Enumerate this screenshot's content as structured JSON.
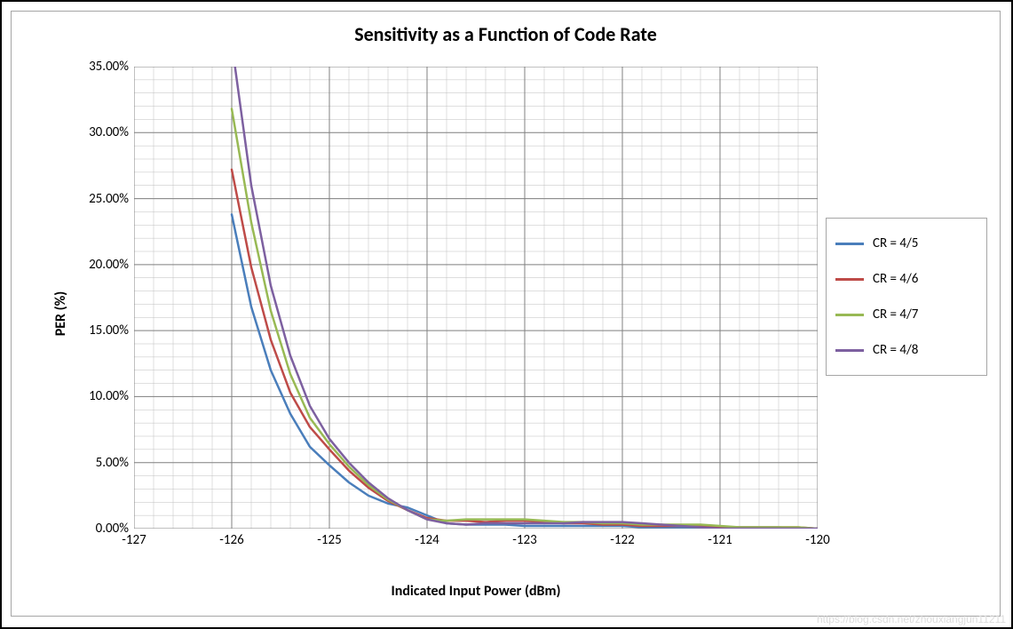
{
  "chart": {
    "type": "line",
    "title": "Sensitivity as a Function of Code Rate",
    "title_fontsize": 22,
    "title_fontweight": "bold",
    "xlabel": "Indicated Input Power (dBm)",
    "ylabel": "PER (%)",
    "label_fontsize": 16,
    "label_fontweight": "bold",
    "tick_fontsize": 15,
    "background_color": "#ffffff",
    "plot_background_color": "#ffffff",
    "outer_border_color": "#000000",
    "inner_border_color": "#a6a6a6",
    "xlim": [
      -127,
      -120
    ],
    "ylim": [
      0,
      0.35
    ],
    "x_major_ticks": [
      -127,
      -126,
      -125,
      -124,
      -123,
      -122,
      -121,
      -120
    ],
    "x_minor_step": 0.2,
    "y_major_ticks": [
      0,
      0.05,
      0.1,
      0.15,
      0.2,
      0.25,
      0.3,
      0.35
    ],
    "y_minor_step": 0.01,
    "y_tick_labels": [
      "0.00%",
      "5.00%",
      "10.00%",
      "15.00%",
      "20.00%",
      "25.00%",
      "30.00%",
      "35.00%"
    ],
    "x_tick_labels": [
      "-127",
      "-126",
      "-125",
      "-124",
      "-123",
      "-122",
      "-121",
      "-120"
    ],
    "major_grid_color": "#808080",
    "minor_grid_color": "#bfbfbf",
    "axis_line_color": "#808080",
    "major_grid_width": 1,
    "minor_grid_width": 0.5,
    "line_width": 2.5,
    "series": [
      {
        "name": "CR = 4/5",
        "color": "#4a7ebb",
        "x": [
          -126,
          -125.8,
          -125.6,
          -125.4,
          -125.2,
          -125,
          -124.8,
          -124.6,
          -124.4,
          -124.2,
          -124,
          -123.8,
          -123.6,
          -123.4,
          -123.2,
          -123,
          -122.8,
          -122.6,
          -122.4,
          -122.2,
          -122,
          -121.8,
          -121.6,
          -121.4,
          -121.2,
          -121,
          -120.8,
          -120.6,
          -120.4,
          -120.2,
          -120
        ],
        "y": [
          0.238,
          0.168,
          0.12,
          0.087,
          0.062,
          0.048,
          0.035,
          0.025,
          0.019,
          0.016,
          0.01,
          0.004,
          0.003,
          0.003,
          0.003,
          0.002,
          0.002,
          0.002,
          0.002,
          0.002,
          0.002,
          0.001,
          0.001,
          0.001,
          0.001,
          0.001,
          0.001,
          0.001,
          0.001,
          0.0,
          0.0
        ]
      },
      {
        "name": "CR = 4/6",
        "color": "#be4b48",
        "x": [
          -126,
          -125.8,
          -125.6,
          -125.4,
          -125.2,
          -125,
          -124.8,
          -124.6,
          -124.4,
          -124.2,
          -124,
          -123.8,
          -123.6,
          -123.4,
          -123.2,
          -123,
          -122.8,
          -122.6,
          -122.4,
          -122.2,
          -122,
          -121.8,
          -121.6,
          -121.4,
          -121.2,
          -121,
          -120.8,
          -120.6,
          -120.4,
          -120.2,
          -120
        ],
        "y": [
          0.272,
          0.198,
          0.143,
          0.103,
          0.077,
          0.06,
          0.044,
          0.031,
          0.021,
          0.014,
          0.008,
          0.006,
          0.006,
          0.005,
          0.006,
          0.006,
          0.005,
          0.004,
          0.004,
          0.003,
          0.003,
          0.002,
          0.002,
          0.002,
          0.002,
          0.001,
          0.001,
          0.001,
          0.001,
          0.001,
          0.0
        ]
      },
      {
        "name": "CR = 4/7",
        "color": "#98b954",
        "x": [
          -126,
          -125.8,
          -125.6,
          -125.4,
          -125.2,
          -125,
          -124.8,
          -124.6,
          -124.4,
          -124.2,
          -124,
          -123.8,
          -123.6,
          -123.4,
          -123.2,
          -123,
          -122.8,
          -122.6,
          -122.4,
          -122.2,
          -122,
          -121.8,
          -121.6,
          -121.4,
          -121.2,
          -121,
          -120.8,
          -120.6,
          -120.4,
          -120.2,
          -120
        ],
        "y": [
          0.318,
          0.232,
          0.165,
          0.117,
          0.084,
          0.064,
          0.047,
          0.033,
          0.022,
          0.014,
          0.007,
          0.006,
          0.007,
          0.007,
          0.007,
          0.007,
          0.006,
          0.005,
          0.005,
          0.004,
          0.004,
          0.003,
          0.003,
          0.003,
          0.003,
          0.002,
          0.001,
          0.001,
          0.001,
          0.001,
          0.0
        ]
      },
      {
        "name": "CR = 4/8",
        "color": "#7d60a0",
        "x": [
          -126,
          -125.8,
          -125.6,
          -125.4,
          -125.2,
          -125,
          -124.8,
          -124.6,
          -124.4,
          -124.2,
          -124,
          -123.8,
          -123.6,
          -123.4,
          -123.2,
          -123,
          -122.8,
          -122.6,
          -122.4,
          -122.2,
          -122,
          -121.8,
          -121.6,
          -121.4,
          -121.2,
          -121,
          -120.8,
          -120.6,
          -120.4,
          -120.2,
          -120
        ],
        "y": [
          0.368,
          0.26,
          0.184,
          0.131,
          0.093,
          0.068,
          0.05,
          0.035,
          0.023,
          0.014,
          0.007,
          0.004,
          0.003,
          0.004,
          0.004,
          0.004,
          0.004,
          0.004,
          0.005,
          0.005,
          0.005,
          0.004,
          0.003,
          0.002,
          0.001,
          0.0,
          0.0,
          0.0,
          0.0,
          0.0,
          0.0
        ]
      }
    ],
    "legend": {
      "position": "right-middle",
      "border_color": "#a6a6a6",
      "swatch_width": 32,
      "swatch_height": 3,
      "item_height": 40
    }
  },
  "watermark": "https://blog.csdn.net/zhouxiangjun11211"
}
